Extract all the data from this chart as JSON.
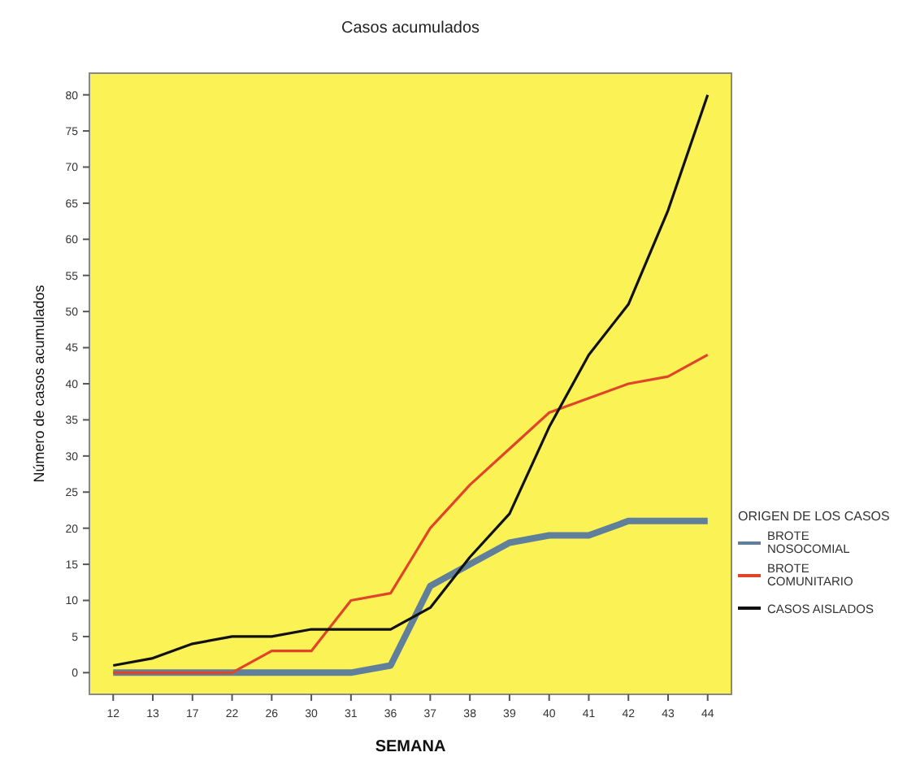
{
  "chart_data": {
    "type": "line",
    "title": "Casos acumulados",
    "xlabel": "SEMANA",
    "ylabel": "Número de casos acumulados",
    "legend_title": "ORIGEN DE LOS CASOS",
    "categories": [
      "12",
      "13",
      "17",
      "22",
      "26",
      "30",
      "31",
      "36",
      "37",
      "38",
      "39",
      "40",
      "41",
      "42",
      "43",
      "44"
    ],
    "series": [
      {
        "name": "BROTE NOSOCOMIAL",
        "color": "#5f7f9a",
        "values": [
          0,
          0,
          0,
          0,
          0,
          0,
          0,
          1,
          12,
          15,
          18,
          19,
          19,
          21,
          21,
          21
        ]
      },
      {
        "name": "BROTE COMUNITARIO",
        "color": "#e0452a",
        "values": [
          0,
          0,
          0,
          0,
          3,
          3,
          10,
          11,
          20,
          26,
          31,
          36,
          38,
          40,
          41,
          44
        ]
      },
      {
        "name": "CASOS AISLADOS",
        "color": "#111111",
        "values": [
          1,
          2,
          4,
          5,
          5,
          6,
          6,
          6,
          9,
          16,
          22,
          34,
          44,
          51,
          64,
          80
        ]
      }
    ],
    "ylim": [
      -3,
      83
    ],
    "yticks": [
      0,
      5,
      10,
      15,
      20,
      25,
      30,
      35,
      40,
      45,
      50,
      55,
      60,
      65,
      70,
      75,
      80
    ],
    "grid": false,
    "legend": "right",
    "marker": "none",
    "line_style": "solid"
  }
}
